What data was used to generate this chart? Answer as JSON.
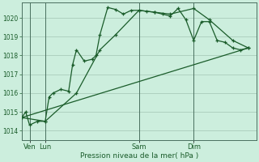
{
  "title": "",
  "xlabel": "Pression niveau de la mer( hPa )",
  "bg_color": "#cceedd",
  "grid_color": "#aaccbb",
  "line_color": "#1a5c2a",
  "vline_color": "#4a7060",
  "ylim": [
    1013.5,
    1020.8
  ],
  "yticks": [
    1014,
    1015,
    1016,
    1017,
    1018,
    1019,
    1020
  ],
  "xlim": [
    0,
    30
  ],
  "day_labels": [
    "Ven",
    "Lun",
    "Sam",
    "Dim"
  ],
  "day_positions": [
    1,
    3,
    15,
    22
  ],
  "vline_positions": [
    1,
    3,
    15,
    22
  ],
  "series1_x": [
    0,
    0.5,
    1,
    2,
    3,
    3.5,
    4,
    5,
    6,
    6.5,
    7,
    8,
    9,
    9.5,
    10,
    11,
    12,
    13,
    14,
    15,
    16,
    17,
    18,
    19,
    20,
    21,
    22,
    23,
    24,
    25,
    26,
    27,
    28,
    29
  ],
  "series1_y": [
    1014.7,
    1015.0,
    1014.3,
    1014.5,
    1014.5,
    1015.8,
    1016.0,
    1016.2,
    1016.1,
    1017.5,
    1018.3,
    1017.7,
    1017.8,
    1018.0,
    1019.1,
    1020.55,
    1020.45,
    1020.2,
    1020.4,
    1020.4,
    1020.35,
    1020.3,
    1020.2,
    1020.1,
    1020.5,
    1019.9,
    1018.8,
    1019.8,
    1019.8,
    1018.8,
    1018.7,
    1018.4,
    1018.3,
    1018.4
  ],
  "series2_x": [
    0,
    3,
    7,
    10,
    12,
    15,
    17,
    19,
    22,
    24,
    27,
    29
  ],
  "series2_y": [
    1014.7,
    1014.5,
    1016.0,
    1018.3,
    1019.1,
    1020.4,
    1020.3,
    1020.2,
    1020.5,
    1019.9,
    1018.8,
    1018.4
  ],
  "trend_x": [
    0,
    29
  ],
  "trend_y": [
    1014.7,
    1018.4
  ]
}
